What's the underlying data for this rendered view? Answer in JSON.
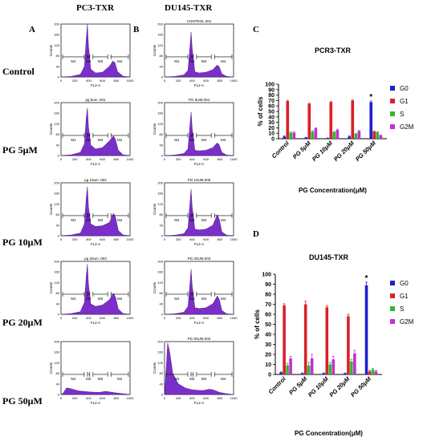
{
  "figure": {
    "label_A": "A",
    "label_B": "B",
    "label_C": "C",
    "label_D": "D",
    "col_left_title": "PC3-TXR",
    "col_right_title": "DU145-TXR",
    "row_labels": [
      "Control",
      "PG 5μM",
      "PG 10μM",
      "PG 20μM",
      "PG 50μM"
    ]
  },
  "histograms": {
    "fill_color": "#7b2fc9",
    "ylabel": "Counts",
    "xlabel": "FL2-A",
    "xticks": [
      "0",
      "200",
      "400",
      "600",
      "800",
      "1000"
    ],
    "gates": [
      "M1",
      "M2",
      "M3",
      "M4"
    ],
    "left_titles": [
      "",
      "pg 5um .001",
      "pg 10um .002",
      "pg 20um .003",
      ""
    ],
    "right_titles": [
      "CONTROL.001",
      "PG 5UM.004",
      "PG 10UM.005",
      "PG 20UM.003",
      "PG 50UM.002"
    ],
    "left_profiles": [
      [
        [
          0,
          0
        ],
        [
          150,
          2
        ],
        [
          280,
          10
        ],
        [
          340,
          40
        ],
        [
          368,
          150
        ],
        [
          382,
          200
        ],
        [
          398,
          120
        ],
        [
          430,
          30
        ],
        [
          500,
          15
        ],
        [
          600,
          18
        ],
        [
          700,
          40
        ],
        [
          750,
          60
        ],
        [
          780,
          55
        ],
        [
          820,
          20
        ],
        [
          900,
          3
        ],
        [
          1000,
          0
        ]
      ],
      [
        [
          0,
          0
        ],
        [
          150,
          3
        ],
        [
          280,
          12
        ],
        [
          340,
          45
        ],
        [
          368,
          150
        ],
        [
          382,
          180
        ],
        [
          398,
          110
        ],
        [
          430,
          40
        ],
        [
          500,
          25
        ],
        [
          600,
          30
        ],
        [
          700,
          55
        ],
        [
          760,
          75
        ],
        [
          790,
          60
        ],
        [
          830,
          20
        ],
        [
          900,
          3
        ],
        [
          1000,
          0
        ]
      ],
      [
        [
          0,
          0
        ],
        [
          150,
          3
        ],
        [
          280,
          10
        ],
        [
          340,
          45
        ],
        [
          368,
          150
        ],
        [
          382,
          185
        ],
        [
          398,
          110
        ],
        [
          430,
          45
        ],
        [
          500,
          35
        ],
        [
          600,
          38
        ],
        [
          700,
          50
        ],
        [
          760,
          85
        ],
        [
          790,
          70
        ],
        [
          830,
          20
        ],
        [
          900,
          3
        ],
        [
          1000,
          0
        ]
      ],
      [
        [
          0,
          0
        ],
        [
          150,
          3
        ],
        [
          280,
          10
        ],
        [
          340,
          45
        ],
        [
          368,
          150
        ],
        [
          382,
          190
        ],
        [
          398,
          115
        ],
        [
          430,
          40
        ],
        [
          500,
          30
        ],
        [
          600,
          35
        ],
        [
          700,
          55
        ],
        [
          760,
          80
        ],
        [
          790,
          65
        ],
        [
          830,
          20
        ],
        [
          900,
          3
        ],
        [
          1000,
          0
        ]
      ],
      [
        [
          0,
          0
        ],
        [
          30,
          5
        ],
        [
          80,
          25
        ],
        [
          140,
          22
        ],
        [
          250,
          14
        ],
        [
          400,
          10
        ],
        [
          550,
          8
        ],
        [
          650,
          12
        ],
        [
          700,
          10
        ],
        [
          800,
          6
        ],
        [
          900,
          3
        ],
        [
          1000,
          0
        ]
      ]
    ],
    "right_profiles": [
      [
        [
          0,
          0
        ],
        [
          150,
          2
        ],
        [
          280,
          8
        ],
        [
          340,
          25
        ],
        [
          370,
          120
        ],
        [
          385,
          170
        ],
        [
          400,
          110
        ],
        [
          440,
          20
        ],
        [
          500,
          15
        ],
        [
          600,
          18
        ],
        [
          700,
          28
        ],
        [
          760,
          45
        ],
        [
          790,
          40
        ],
        [
          830,
          12
        ],
        [
          900,
          2
        ],
        [
          1000,
          0
        ]
      ],
      [
        [
          0,
          0
        ],
        [
          150,
          2
        ],
        [
          280,
          8
        ],
        [
          340,
          25
        ],
        [
          370,
          120
        ],
        [
          385,
          165
        ],
        [
          400,
          105
        ],
        [
          440,
          20
        ],
        [
          500,
          18
        ],
        [
          600,
          20
        ],
        [
          700,
          30
        ],
        [
          760,
          48
        ],
        [
          790,
          42
        ],
        [
          830,
          12
        ],
        [
          900,
          2
        ],
        [
          1000,
          0
        ]
      ],
      [
        [
          0,
          0
        ],
        [
          150,
          2
        ],
        [
          280,
          8
        ],
        [
          340,
          30
        ],
        [
          370,
          130
        ],
        [
          385,
          175
        ],
        [
          400,
          110
        ],
        [
          440,
          25
        ],
        [
          500,
          22
        ],
        [
          600,
          25
        ],
        [
          700,
          40
        ],
        [
          765,
          80
        ],
        [
          795,
          60
        ],
        [
          830,
          15
        ],
        [
          900,
          2
        ],
        [
          1000,
          0
        ]
      ],
      [
        [
          0,
          0
        ],
        [
          150,
          2
        ],
        [
          280,
          8
        ],
        [
          340,
          30
        ],
        [
          370,
          120
        ],
        [
          385,
          170
        ],
        [
          400,
          110
        ],
        [
          440,
          25
        ],
        [
          500,
          22
        ],
        [
          600,
          25
        ],
        [
          700,
          40
        ],
        [
          765,
          70
        ],
        [
          795,
          55
        ],
        [
          830,
          15
        ],
        [
          900,
          2
        ],
        [
          1000,
          0
        ]
      ],
      [
        [
          0,
          0
        ],
        [
          20,
          80
        ],
        [
          45,
          195
        ],
        [
          75,
          160
        ],
        [
          120,
          80
        ],
        [
          200,
          40
        ],
        [
          300,
          25
        ],
        [
          400,
          18
        ],
        [
          550,
          15
        ],
        [
          650,
          20
        ],
        [
          700,
          18
        ],
        [
          800,
          8
        ],
        [
          900,
          3
        ],
        [
          1000,
          0
        ]
      ]
    ]
  },
  "chart_data": [
    {
      "type": "bar",
      "title": "PCR3-TXR",
      "xlabel": "PG Concentration(μM)",
      "ylabel": "% of cells",
      "ylim": [
        0,
        100
      ],
      "yticks": [
        0,
        10,
        20,
        30,
        40,
        50,
        60,
        70,
        80,
        90,
        100
      ],
      "categories": [
        "Control",
        "PG 5μM",
        "PG 10μM",
        "PG 20μM",
        "PG 50μM"
      ],
      "legend_position": "top-right",
      "series": [
        {
          "name": "G0",
          "color": "#1f1fd0",
          "values": [
            4,
            2,
            1,
            4,
            67
          ],
          "errors": [
            1,
            0.5,
            0.5,
            1,
            2
          ]
        },
        {
          "name": "G1",
          "color": "#d9202a",
          "values": [
            69,
            64,
            67,
            70,
            13
          ],
          "errors": [
            1.5,
            1,
            1,
            1,
            1
          ]
        },
        {
          "name": "S",
          "color": "#2fb82f",
          "values": [
            11,
            13,
            12,
            9,
            12
          ],
          "errors": [
            1.5,
            1.5,
            1,
            1,
            1
          ]
        },
        {
          "name": "G2M",
          "color": "#c42ed6",
          "values": [
            11,
            19,
            16,
            14,
            6
          ],
          "errors": [
            1.5,
            1,
            1.5,
            1,
            1
          ]
        }
      ],
      "annotation": "*"
    },
    {
      "type": "bar",
      "title": "DU145-TXR",
      "xlabel": "PG Concentration(μM)",
      "ylabel": "% of cells",
      "ylim": [
        0,
        100
      ],
      "yticks": [
        0,
        10,
        20,
        30,
        40,
        50,
        60,
        70,
        80,
        90,
        100
      ],
      "categories": [
        "Control",
        "PG 5μM",
        "PG 10μM",
        "PG 20μM",
        "PG 50μM"
      ],
      "legend_position": "top-right",
      "series": [
        {
          "name": "G0",
          "color": "#1f1fd0",
          "values": [
            2,
            1,
            1,
            1,
            89
          ],
          "errors": [
            0.5,
            0.5,
            0.5,
            0.5,
            3
          ]
        },
        {
          "name": "G1",
          "color": "#d9202a",
          "values": [
            69,
            70,
            67,
            58,
            3
          ],
          "errors": [
            1.5,
            3,
            1.5,
            2,
            1
          ]
        },
        {
          "name": "S",
          "color": "#2fb82f",
          "values": [
            9,
            9,
            10,
            13,
            5
          ],
          "errors": [
            2,
            3,
            2,
            2,
            1
          ]
        },
        {
          "name": "G2M",
          "color": "#c42ed6",
          "values": [
            16,
            16,
            15,
            21,
            3
          ],
          "errors": [
            2,
            4,
            3,
            3,
            1
          ]
        }
      ],
      "annotation": "*"
    }
  ]
}
